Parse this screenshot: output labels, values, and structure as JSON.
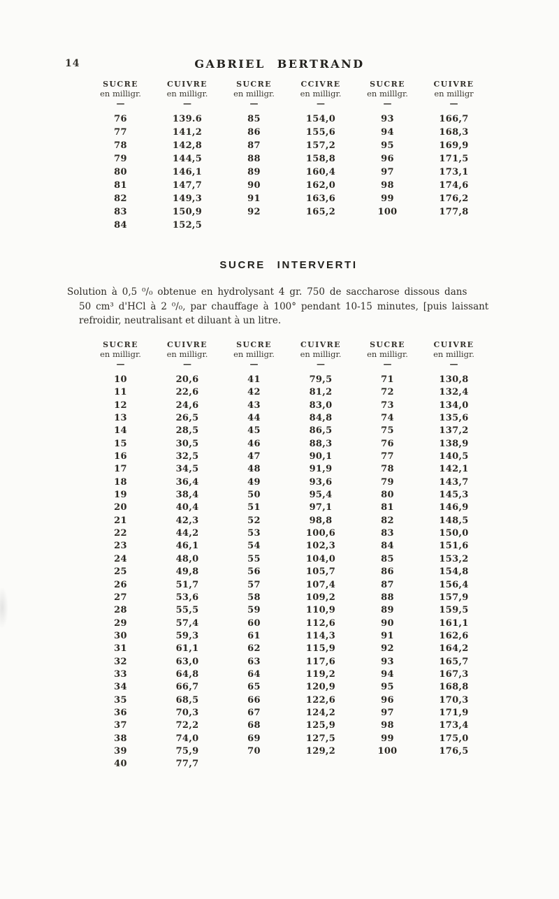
{
  "theme": {
    "paper": "#fbfbf9",
    "ink": "#2c2a25"
  },
  "page": {
    "number": "14",
    "running_title": "GABRIEL BERTRAND"
  },
  "table1": {
    "header_rows": [
      [
        "SUCRE",
        "CUIVRE",
        "SUCRE",
        "CCIVRE",
        "SUCRE",
        "CUIVRE"
      ],
      [
        "en milligr.",
        "en milligr.",
        "en milligr.",
        "en milligr.",
        "en milllgr.",
        "en milligr"
      ],
      [
        "—",
        "—",
        "—",
        "—",
        "—",
        "—"
      ]
    ],
    "rows": [
      [
        "76",
        "139.6",
        "85",
        "154,0",
        "93",
        "166,7"
      ],
      [
        "77",
        "141,2",
        "86",
        "155,6",
        "94",
        "168,3"
      ],
      [
        "78",
        "142,8",
        "87",
        "157,2",
        "95",
        "169,9"
      ],
      [
        "79",
        "144,5",
        "88",
        "158,8",
        "96",
        "171,5"
      ],
      [
        "80",
        "146,1",
        "89",
        "160,4",
        "97",
        "173,1"
      ],
      [
        "81",
        "147,7",
        "90",
        "162,0",
        "98",
        "174,6"
      ],
      [
        "82",
        "149,3",
        "91",
        "163,6",
        "99",
        "176,2"
      ],
      [
        "83",
        "150,9",
        "92",
        "165,2",
        "100",
        "177,8"
      ],
      [
        "84",
        "152,5",
        "",
        "",
        "",
        ""
      ]
    ]
  },
  "section": {
    "heading": "SUCRE INTERVERTI",
    "para_line1": "Solution à 0,5 ⁰/₀ obtenue en hydrolysant 4 gr. 750 de saccharose dissous dans",
    "para_line2": "50 cm³ d'HCl à 2 ⁰/₀, par chauffage à 100° pendant 10-15 minutes, [puis laissant",
    "para_line3": "refroidir, neutralisant et diluant à un litre."
  },
  "table2": {
    "header_rows": [
      [
        "SUCRE",
        "CUIVRE",
        "SUCRE",
        "CUIVRE",
        "SUCRE",
        "CUIVRE"
      ],
      [
        "en milligr.",
        "en milligr.",
        "en milligr.",
        "en milligr.",
        "en milligr.",
        "en milligr."
      ],
      [
        "—",
        "—",
        "—",
        "—",
        "—",
        "—"
      ]
    ],
    "rows": [
      [
        "10",
        "20,6",
        "41",
        "79,5",
        "71",
        "130,8"
      ],
      [
        "11",
        "22,6",
        "42",
        "81,2",
        "72",
        "132,4"
      ],
      [
        "12",
        "24,6",
        "43",
        "83,0",
        "73",
        "134,0"
      ],
      [
        "13",
        "26,5",
        "44",
        "84,8",
        "74",
        "135,6"
      ],
      [
        "14",
        "28,5",
        "45",
        "86,5",
        "75",
        "137,2"
      ],
      [
        "15",
        "30,5",
        "46",
        "88,3",
        "76",
        "138,9"
      ],
      [
        "16",
        "32,5",
        "47",
        "90,1",
        "77",
        "140,5"
      ],
      [
        "17",
        "34,5",
        "48",
        "91,9",
        "78",
        "142,1"
      ],
      [
        "18",
        "36,4",
        "49",
        "93,6",
        "79",
        "143,7"
      ],
      [
        "19",
        "38,4",
        "50",
        "95,4",
        "80",
        "145,3"
      ],
      [
        "20",
        "40,4",
        "51",
        "97,1",
        "81",
        "146,9"
      ],
      [
        "21",
        "42,3",
        "52",
        "98,8",
        "82",
        "148,5"
      ],
      [
        "22",
        "44,2",
        "53",
        "100,6",
        "83",
        "150,0"
      ],
      [
        "23",
        "46,1",
        "54",
        "102,3",
        "84",
        "151,6"
      ],
      [
        "24",
        "48,0",
        "55",
        "104,0",
        "85",
        "153,2"
      ],
      [
        "25",
        "49,8",
        "56",
        "105,7",
        "86",
        "154,8"
      ],
      [
        "26",
        "51,7",
        "57",
        "107,4",
        "87",
        "156,4"
      ],
      [
        "27",
        "53,6",
        "58",
        "109,2",
        "88",
        "157,9"
      ],
      [
        "28",
        "55,5",
        "59",
        "110,9",
        "89",
        "159,5"
      ],
      [
        "29",
        "57,4",
        "60",
        "112,6",
        "90",
        "161,1"
      ],
      [
        "30",
        "59,3",
        "61",
        "114,3",
        "91",
        "162,6"
      ],
      [
        "31",
        "61,1",
        "62",
        "115,9",
        "92",
        "164,2"
      ],
      [
        "32",
        "63,0",
        "63",
        "117,6",
        "93",
        "165,7"
      ],
      [
        "33",
        "64,8",
        "64",
        "119,2",
        "94",
        "167,3"
      ],
      [
        "34",
        "66,7",
        "65",
        "120,9",
        "95",
        "168,8"
      ],
      [
        "35",
        "68,5",
        "66",
        "122,6",
        "96",
        "170,3"
      ],
      [
        "36",
        "70,3",
        "67",
        "124,2",
        "97",
        "171,9"
      ],
      [
        "37",
        "72,2",
        "68",
        "125,9",
        "98",
        "173,4"
      ],
      [
        "38",
        "74,0",
        "69",
        "127,5",
        "99",
        "175,0"
      ],
      [
        "39",
        "75,9",
        "70",
        "129,2",
        "100",
        "176,5"
      ],
      [
        "40",
        "77,7",
        "",
        "",
        "",
        ""
      ]
    ]
  }
}
